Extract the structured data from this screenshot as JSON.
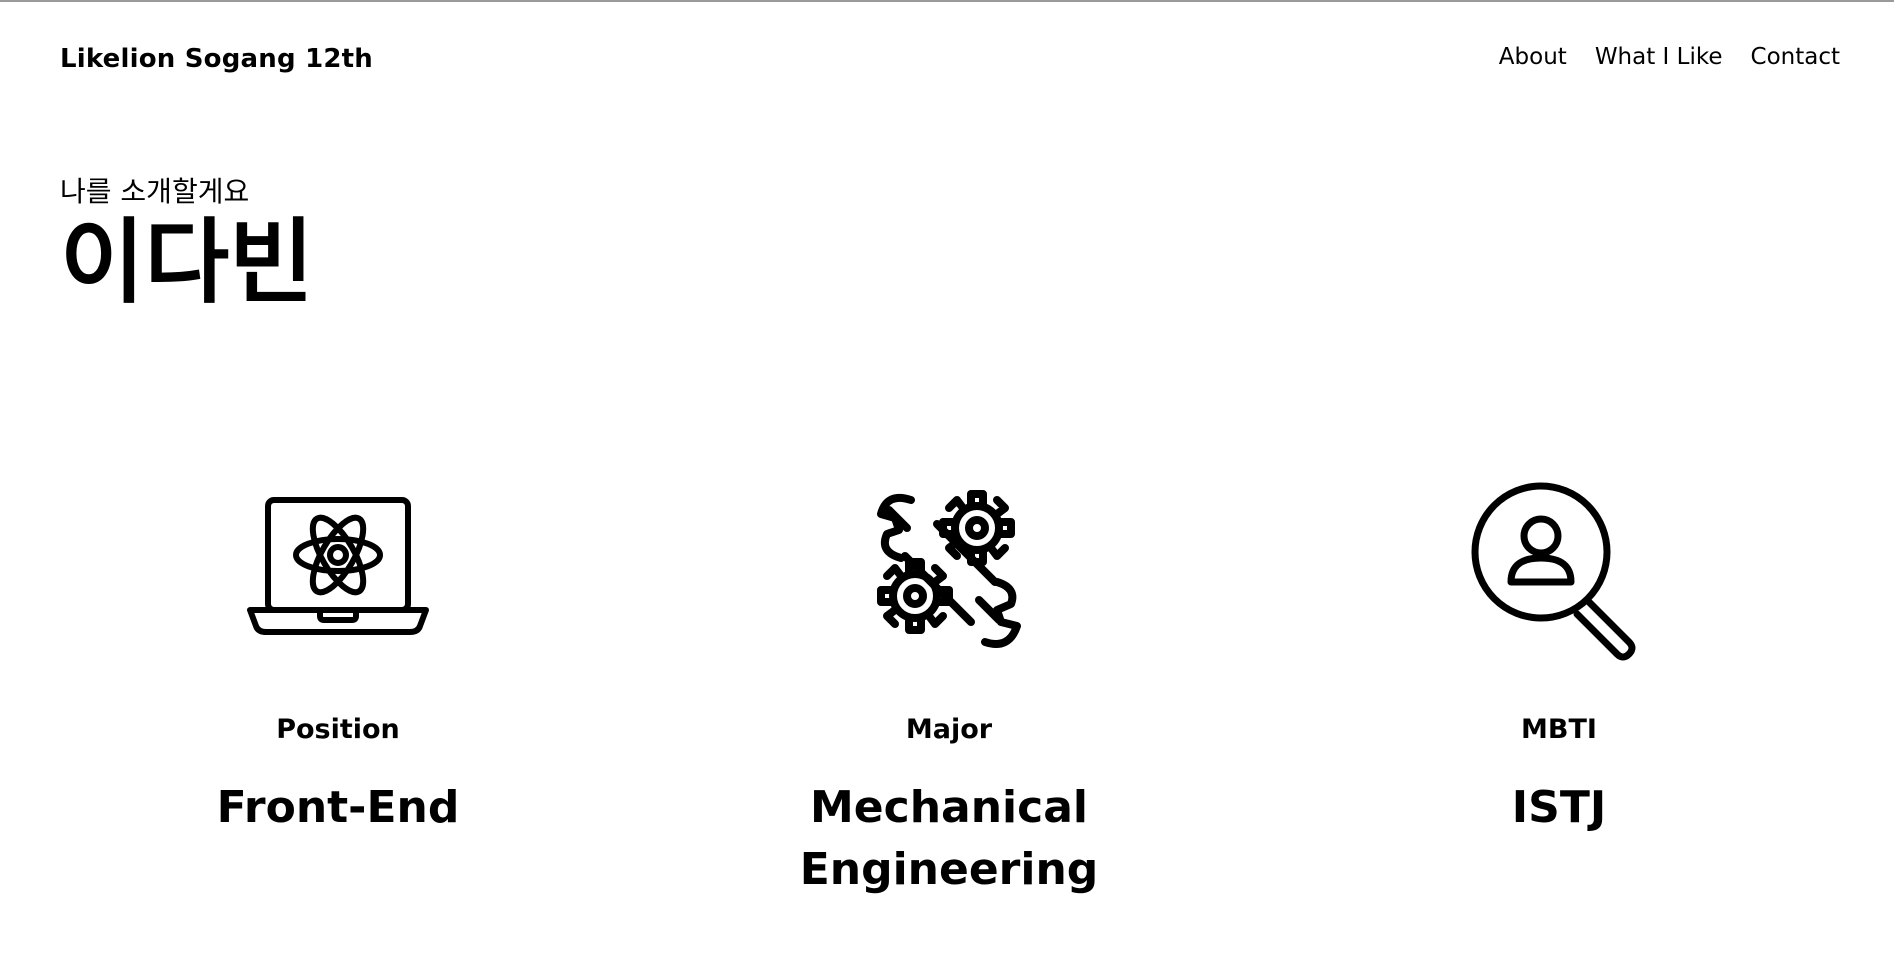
{
  "header": {
    "brand": "Likelion Sogang 12th",
    "nav": [
      "About",
      "What I Like",
      "Contact"
    ]
  },
  "intro": {
    "subtitle": "나를 소개할게요",
    "name": "이다빈"
  },
  "cards": [
    {
      "icon": "laptop-atom-icon",
      "label": "Position",
      "value": "Front-End"
    },
    {
      "icon": "wrench-gears-icon",
      "label": "Major",
      "value": "Mechanical Engineering"
    },
    {
      "icon": "user-search-icon",
      "label": "MBTI",
      "value": "ISTJ"
    }
  ],
  "colors": {
    "background": "#ffffff",
    "text": "#000000"
  }
}
